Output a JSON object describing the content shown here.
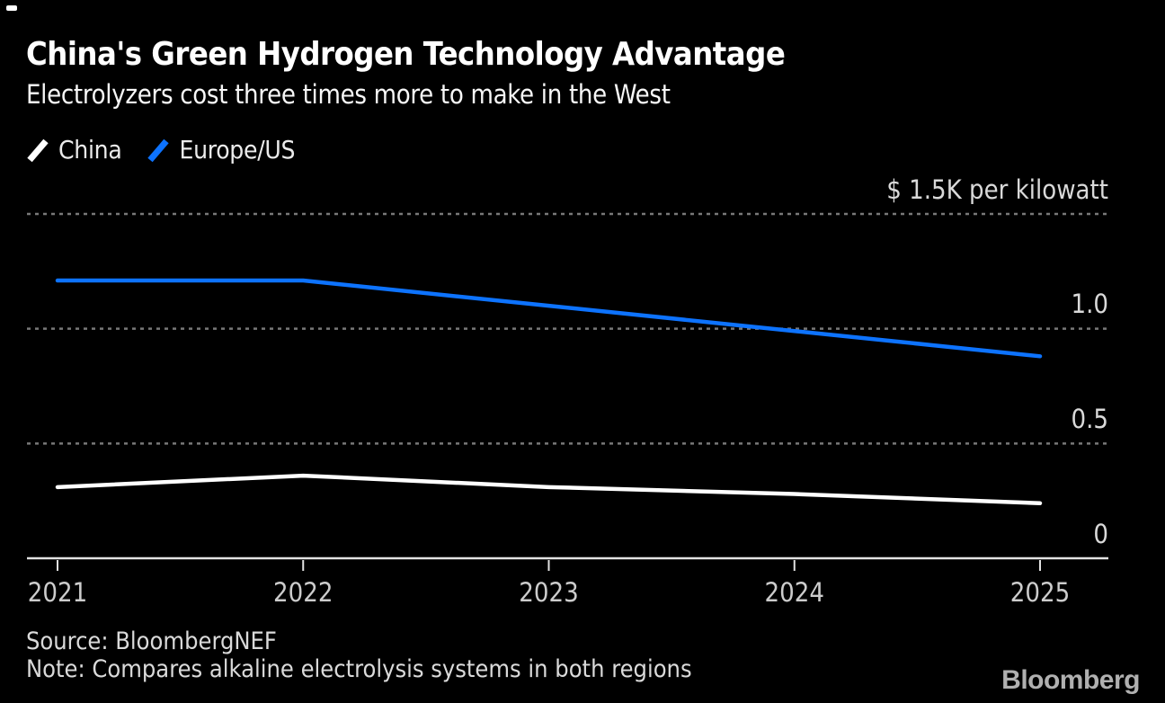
{
  "page": {
    "background": "#000000"
  },
  "header": {
    "title": "China's Green Hydrogen Technology Advantage",
    "subtitle": "Electrolyzers cost three times more to make in the West"
  },
  "chart_data": {
    "type": "line",
    "title": "China's Green Hydrogen Technology Advantage",
    "subtitle": "Electrolyzers cost three times more to make in the West",
    "x": [
      2021,
      2022,
      2023,
      2024,
      2025
    ],
    "x_tick_labels": [
      "2021",
      "2022",
      "2023",
      "2024",
      "2025"
    ],
    "series": [
      {
        "name": "China",
        "color": "#ffffff",
        "values": [
          0.31,
          0.36,
          0.31,
          0.28,
          0.24
        ]
      },
      {
        "name": "Europe/US",
        "color": "#0d73ff",
        "values": [
          1.21,
          1.21,
          1.1,
          0.99,
          0.88
        ]
      }
    ],
    "ylabel": "$ per kilowatt (thousands)",
    "ylim": [
      0,
      1.5
    ],
    "y_gridline_values": [
      0.5,
      1.0,
      1.5
    ],
    "y_tick_labels": [
      "0",
      "0.5",
      "1.0"
    ],
    "top_axis_label": "$ 1.5K per kilowatt",
    "grid": "dotted horizontal",
    "legend_position": "top-left",
    "colors": {
      "gridline": "#787878",
      "baseline": "#e2e2e2",
      "tick_label": "#cccccc",
      "axis_label": "#d9d9d9"
    }
  },
  "footer": {
    "source": "Source: BloombergNEF",
    "note": "Note: Compares alkaline electrolysis systems in both regions",
    "logo": "Bloomberg"
  }
}
